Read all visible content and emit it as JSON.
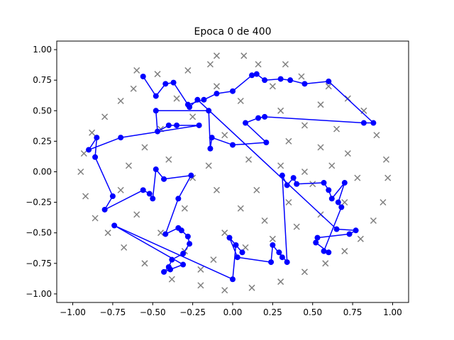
{
  "chart_data": {
    "type": "scatter",
    "title": "Epoca 0 de 400",
    "xlabel": "",
    "ylabel": "",
    "xlim": [
      -1.1,
      1.1
    ],
    "ylim": [
      -1.07,
      1.07
    ],
    "x_ticks": [
      -1.0,
      -0.75,
      -0.5,
      -0.25,
      0.0,
      0.25,
      0.5,
      0.75,
      1.0
    ],
    "x_tick_labels": [
      "−1.00",
      "−0.75",
      "−0.50",
      "−0.25",
      "0.00",
      "0.25",
      "0.50",
      "0.75",
      "1.00"
    ],
    "y_ticks": [
      -1.0,
      -0.75,
      -0.5,
      -0.25,
      0.0,
      0.25,
      0.5,
      0.75,
      1.0
    ],
    "y_tick_labels": [
      "−1.00",
      "−0.75",
      "−0.50",
      "−0.25",
      "0.00",
      "0.25",
      "0.50",
      "0.75",
      "1.00"
    ],
    "grid": false,
    "colors": {
      "data_points": "#808080",
      "network": "#0000ff"
    },
    "series": [
      {
        "marker": "x",
        "region": "unit disk",
        "points": [
          [
            -0.1,
            0.95
          ],
          [
            0.07,
            0.95
          ],
          [
            -0.6,
            0.83
          ],
          [
            -0.47,
            0.8
          ],
          [
            -0.28,
            0.83
          ],
          [
            -0.14,
            0.88
          ],
          [
            0.16,
            0.88
          ],
          [
            0.33,
            0.88
          ],
          [
            0.43,
            0.78
          ],
          [
            0.6,
            0.7
          ],
          [
            0.72,
            0.6
          ],
          [
            0.82,
            0.5
          ],
          [
            0.9,
            0.3
          ],
          [
            0.96,
            0.1
          ],
          [
            0.97,
            -0.05
          ],
          [
            0.94,
            -0.25
          ],
          [
            0.88,
            -0.4
          ],
          [
            0.8,
            -0.55
          ],
          [
            0.7,
            -0.65
          ],
          [
            0.58,
            -0.75
          ],
          [
            0.45,
            -0.82
          ],
          [
            0.3,
            -0.9
          ],
          [
            0.12,
            -0.95
          ],
          [
            -0.05,
            -0.97
          ],
          [
            -0.2,
            -0.93
          ],
          [
            -0.38,
            -0.88
          ],
          [
            -0.55,
            -0.75
          ],
          [
            -0.68,
            -0.62
          ],
          [
            -0.78,
            -0.5
          ],
          [
            -0.86,
            -0.38
          ],
          [
            -0.92,
            -0.2
          ],
          [
            -0.95,
            0.0
          ],
          [
            -0.93,
            0.15
          ],
          [
            -0.88,
            0.32
          ],
          [
            -0.8,
            0.45
          ],
          [
            -0.7,
            0.58
          ],
          [
            -0.62,
            0.68
          ],
          [
            -0.35,
            0.6
          ],
          [
            -0.1,
            0.7
          ],
          [
            0.05,
            0.58
          ],
          [
            0.3,
            0.5
          ],
          [
            0.45,
            0.38
          ],
          [
            0.55,
            0.2
          ],
          [
            0.62,
            0.05
          ],
          [
            0.5,
            -0.1
          ],
          [
            0.35,
            -0.25
          ],
          [
            0.2,
            -0.4
          ],
          [
            0.05,
            -0.3
          ],
          [
            -0.1,
            -0.15
          ],
          [
            -0.25,
            -0.05
          ],
          [
            -0.4,
            0.1
          ],
          [
            -0.55,
            0.2
          ],
          [
            -0.65,
            0.05
          ],
          [
            -0.7,
            -0.15
          ],
          [
            -0.6,
            -0.35
          ],
          [
            -0.45,
            -0.5
          ],
          [
            -0.3,
            -0.65
          ],
          [
            -0.12,
            -0.72
          ],
          [
            0.08,
            -0.62
          ],
          [
            0.25,
            -0.55
          ],
          [
            0.4,
            -0.45
          ],
          [
            0.55,
            -0.35
          ],
          [
            0.7,
            -0.25
          ],
          [
            0.78,
            -0.05
          ],
          [
            0.72,
            0.15
          ],
          [
            0.65,
            0.35
          ],
          [
            0.55,
            0.55
          ],
          [
            0.25,
            0.7
          ],
          [
            -0.25,
            0.45
          ],
          [
            -0.05,
            0.3
          ],
          [
            0.1,
            0.1
          ],
          [
            -0.15,
            0.05
          ],
          [
            0.3,
            0.05
          ],
          [
            0.15,
            -0.15
          ],
          [
            -0.3,
            -0.3
          ],
          [
            -0.05,
            -0.5
          ],
          [
            0.45,
            0.0
          ],
          [
            -0.45,
            0.35
          ],
          [
            0.35,
            0.25
          ],
          [
            -0.2,
            -0.8
          ]
        ]
      },
      {
        "marker": "o",
        "connected": true,
        "points": [
          [
            -0.56,
            0.78
          ],
          [
            -0.48,
            0.62
          ],
          [
            -0.42,
            0.72
          ],
          [
            -0.37,
            0.73
          ],
          [
            -0.28,
            0.55
          ],
          [
            -0.18,
            0.59
          ],
          [
            -0.1,
            0.64
          ],
          [
            0.0,
            0.66
          ],
          [
            0.12,
            0.79
          ],
          [
            0.15,
            0.8
          ],
          [
            0.2,
            0.75
          ],
          [
            0.3,
            0.76
          ],
          [
            0.36,
            0.75
          ],
          [
            0.45,
            0.72
          ],
          [
            0.6,
            0.74
          ],
          [
            0.88,
            0.4
          ],
          [
            0.82,
            0.4
          ],
          [
            0.2,
            0.45
          ],
          [
            0.16,
            0.44
          ],
          [
            0.08,
            0.4
          ],
          [
            0.21,
            0.24
          ],
          [
            0.0,
            0.22
          ],
          [
            -0.13,
            0.28
          ],
          [
            -0.14,
            0.19
          ],
          [
            -0.15,
            0.5
          ],
          [
            -0.48,
            0.5
          ],
          [
            -0.47,
            0.33
          ],
          [
            -0.4,
            0.38
          ],
          [
            -0.35,
            0.38
          ],
          [
            -0.21,
            0.38
          ],
          [
            -0.7,
            0.28
          ],
          [
            -0.9,
            0.18
          ],
          [
            -0.85,
            0.28
          ],
          [
            -0.86,
            0.12
          ],
          [
            -0.75,
            -0.2
          ],
          [
            -0.8,
            -0.31
          ],
          [
            -0.56,
            -0.15
          ],
          [
            -0.52,
            -0.18
          ],
          [
            -0.5,
            -0.22
          ],
          [
            -0.48,
            0.02
          ],
          [
            -0.43,
            -0.06
          ],
          [
            -0.26,
            -0.03
          ],
          [
            -0.34,
            -0.22
          ],
          [
            -0.42,
            -0.51
          ],
          [
            -0.34,
            -0.46
          ],
          [
            -0.32,
            -0.48
          ],
          [
            -0.28,
            -0.53
          ],
          [
            -0.27,
            -0.59
          ],
          [
            -0.31,
            -0.67
          ],
          [
            -0.38,
            -0.72
          ],
          [
            -0.4,
            -0.78
          ],
          [
            -0.43,
            -0.82
          ],
          [
            -0.39,
            -0.8
          ],
          [
            -0.31,
            -0.76
          ],
          [
            -0.74,
            -0.44
          ],
          [
            0.0,
            -0.88
          ],
          [
            0.02,
            -0.6
          ],
          [
            0.06,
            -0.66
          ],
          [
            -0.02,
            -0.54
          ],
          [
            0.03,
            -0.7
          ],
          [
            0.24,
            -0.74
          ],
          [
            0.25,
            -0.6
          ],
          [
            0.31,
            -0.7
          ],
          [
            0.29,
            -0.66
          ],
          [
            0.34,
            -0.74
          ],
          [
            0.31,
            -0.03
          ],
          [
            0.34,
            -0.11
          ],
          [
            0.38,
            -0.05
          ],
          [
            0.4,
            -0.1
          ],
          [
            0.57,
            -0.09
          ],
          [
            0.6,
            -0.15
          ],
          [
            0.62,
            -0.22
          ],
          [
            0.7,
            -0.09
          ],
          [
            0.66,
            -0.25
          ],
          [
            0.68,
            -0.29
          ],
          [
            0.57,
            -0.65
          ],
          [
            0.6,
            -0.66
          ],
          [
            0.52,
            -0.58
          ],
          [
            0.53,
            -0.54
          ],
          [
            0.73,
            -0.51
          ],
          [
            0.77,
            -0.48
          ],
          [
            0.65,
            -0.47
          ],
          [
            -0.22,
            0.59
          ],
          [
            -0.27,
            0.53
          ]
        ]
      }
    ]
  }
}
